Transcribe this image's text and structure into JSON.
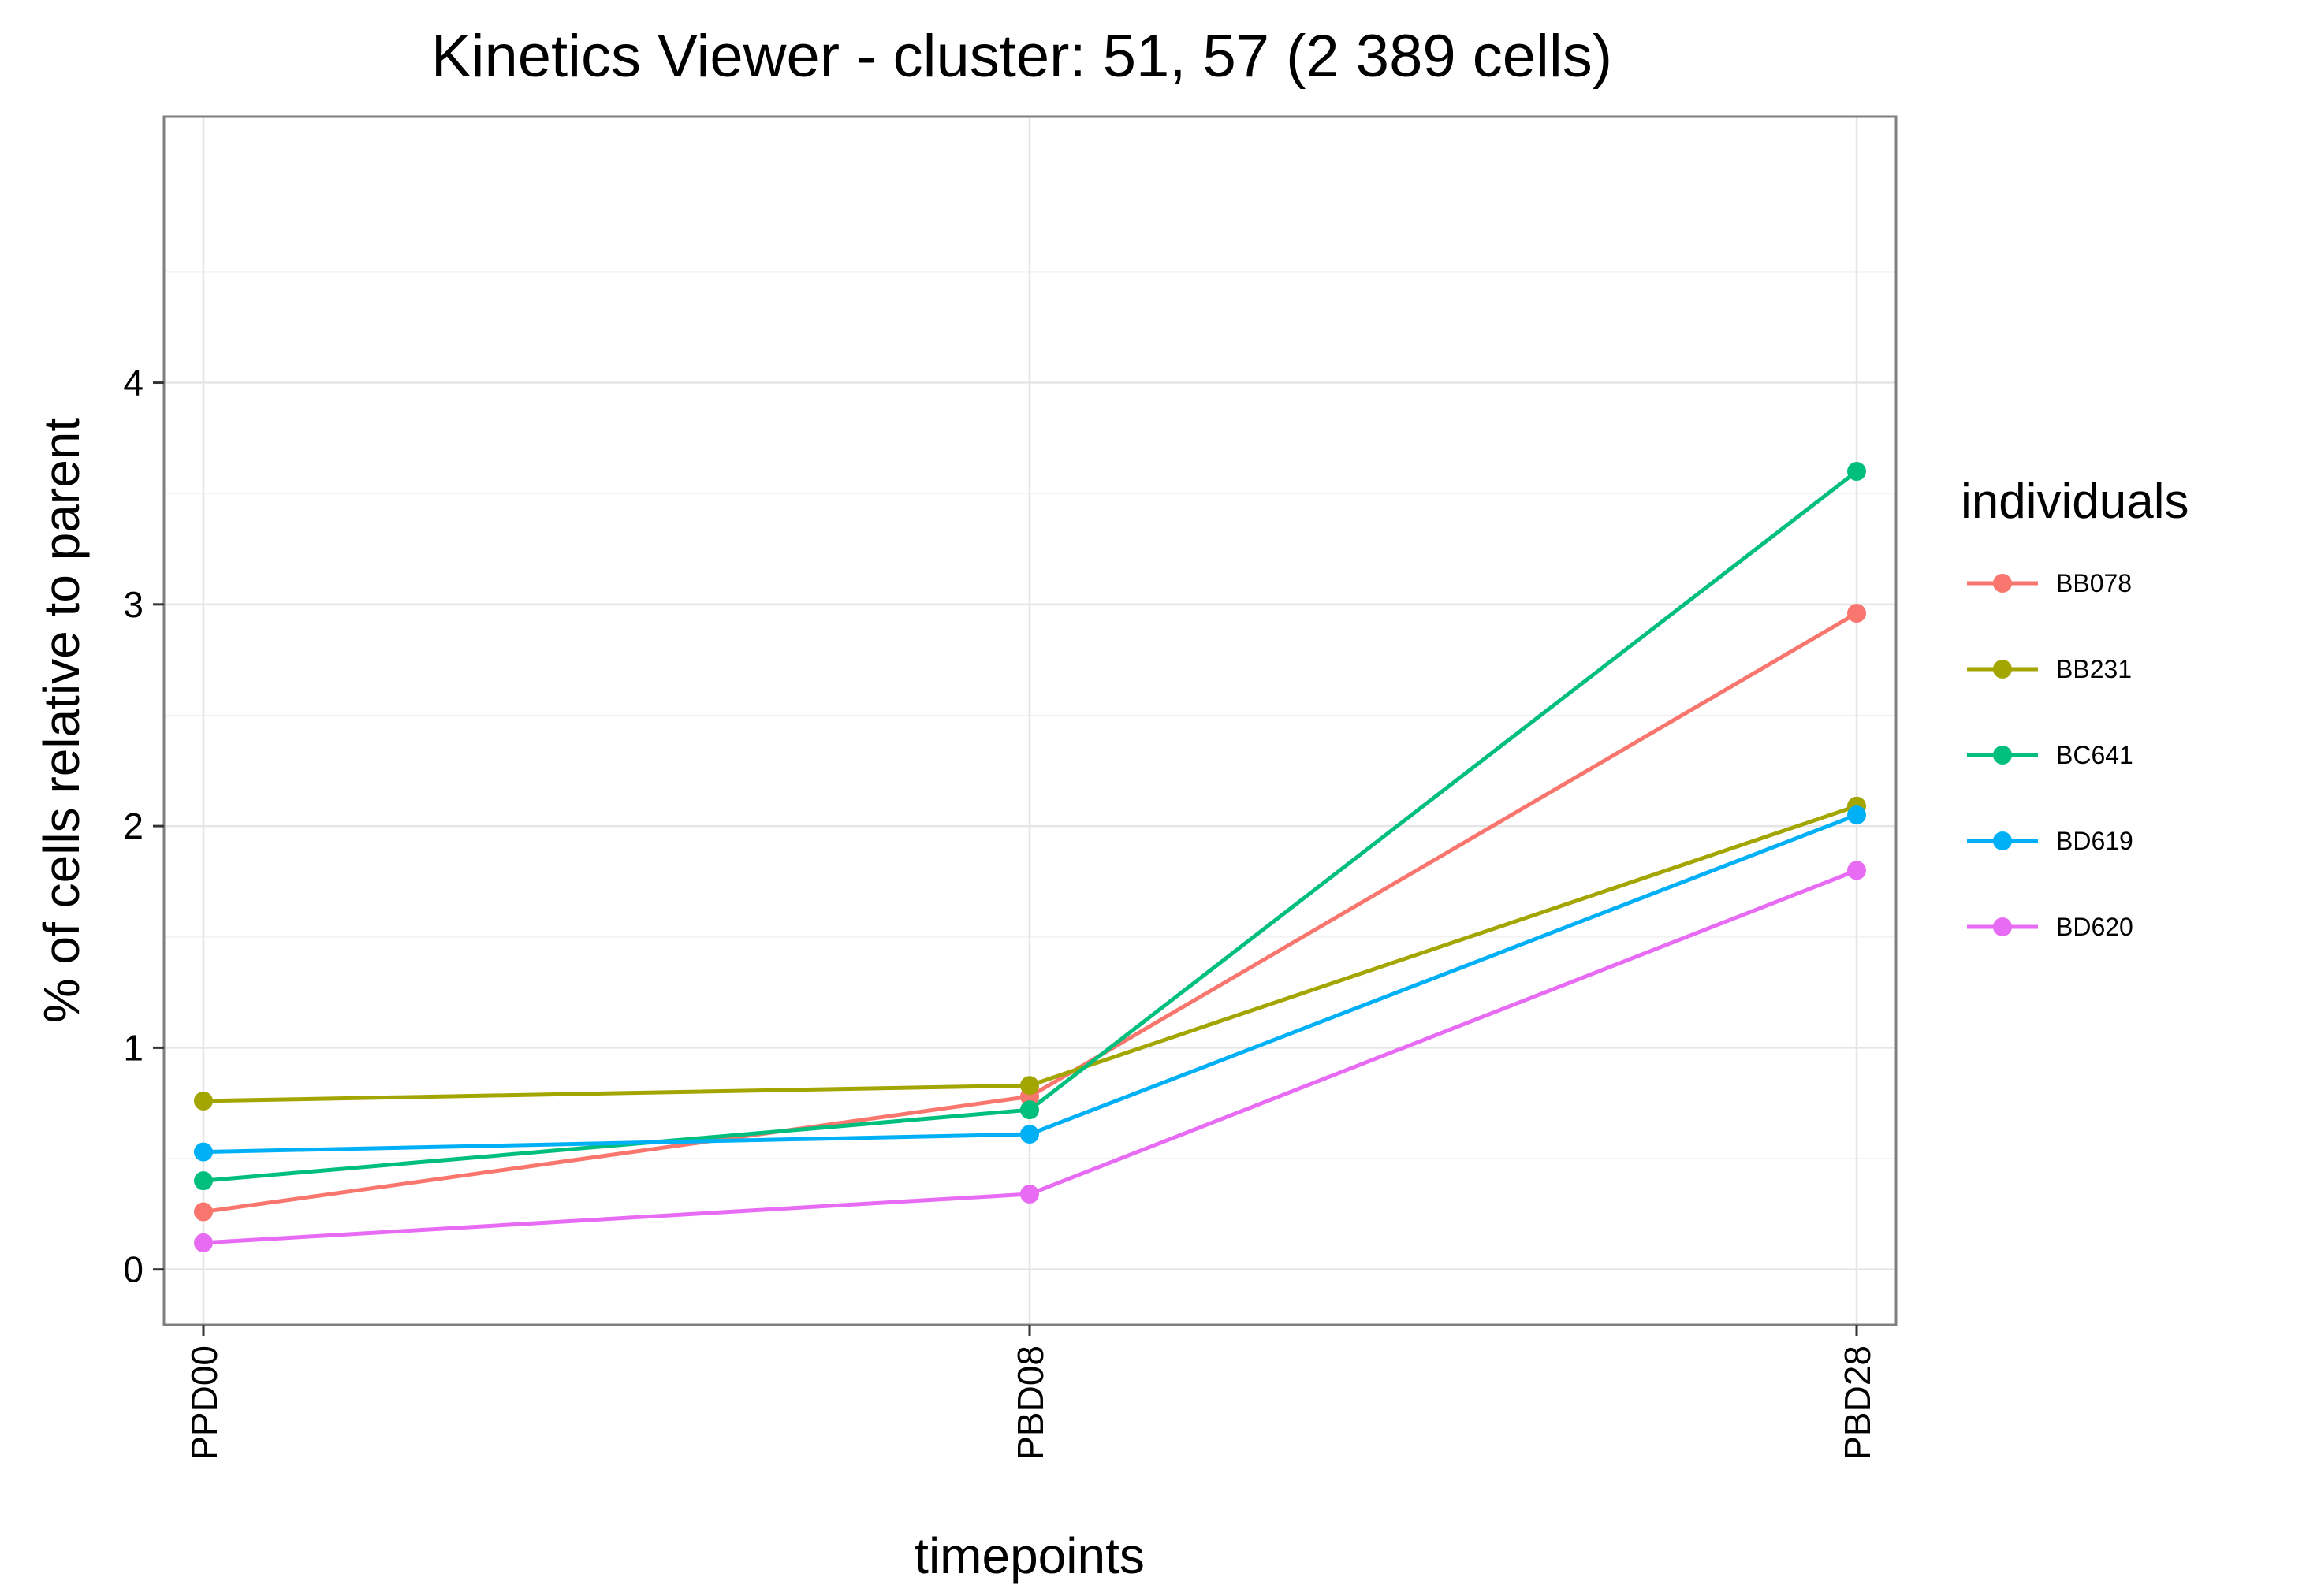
{
  "chart_data": {
    "type": "line",
    "title": "Kinetics Viewer - cluster: 51, 57 (2 389 cells)",
    "xlabel": "timepoints",
    "ylabel": "% of cells relative to parent",
    "categories": [
      "PPD00",
      "PBD08",
      "PBD28"
    ],
    "ylim": [
      -0.25,
      5.2
    ],
    "yticks": [
      0,
      1,
      2,
      3,
      4
    ],
    "grid": true,
    "legend_title": "individuals",
    "legend_position": "right",
    "series": [
      {
        "name": "BB078",
        "color": "#F8766D",
        "values": [
          0.26,
          0.78,
          2.96
        ]
      },
      {
        "name": "BB231",
        "color": "#A3A500",
        "values": [
          0.76,
          0.83,
          2.09
        ]
      },
      {
        "name": "BC641",
        "color": "#00BF7D",
        "values": [
          0.4,
          0.72,
          3.6
        ]
      },
      {
        "name": "BD619",
        "color": "#00B0F6",
        "values": [
          0.53,
          0.61,
          2.05
        ]
      },
      {
        "name": "BD620",
        "color": "#E76BF3",
        "values": [
          0.12,
          0.34,
          1.8
        ]
      }
    ]
  }
}
